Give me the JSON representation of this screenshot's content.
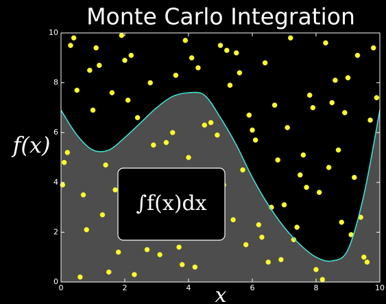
{
  "chart_data": {
    "type": "scatter",
    "title": "Monte Carlo Integration",
    "xlabel": "x",
    "ylabel": "f(x)",
    "annotation": "∫f(x)dx",
    "xlim": [
      0,
      10
    ],
    "ylim": [
      0,
      10
    ],
    "xticks": [
      0,
      2,
      4,
      6,
      8,
      10
    ],
    "yticks": [
      0,
      2,
      4,
      6,
      8,
      10
    ],
    "curve": {
      "color": "#40e0d0",
      "fill": "#4d4d4d",
      "x": [
        0,
        0.5,
        1,
        1.5,
        2,
        2.5,
        3,
        3.5,
        4,
        4.5,
        5,
        5.5,
        6,
        6.5,
        7,
        7.5,
        8,
        8.5,
        9,
        9.5,
        10
      ],
      "values": [
        6.9,
        5.9,
        5.3,
        5.3,
        5.8,
        6.4,
        7.0,
        7.45,
        7.6,
        7.5,
        6.6,
        5.5,
        4.2,
        3.1,
        2.2,
        1.5,
        1.0,
        0.85,
        1.3,
        3.5,
        6.9
      ]
    },
    "points": {
      "color": "#ffff3a",
      "x": [
        0.3,
        1.2,
        2.5,
        3.1,
        4.7,
        5.5,
        6.2,
        7.8,
        8.4,
        9.6,
        0.8,
        1.9,
        2.9,
        3.6,
        4.2,
        5.1,
        6.7,
        7.3,
        8.9,
        9.2,
        0.5,
        1.5,
        2.2,
        3.4,
        4.9,
        5.8,
        6.4,
        7.1,
        8.1,
        9.8,
        0.1,
        1.0,
        2.7,
        3.9,
        4.4,
        5.3,
        6.9,
        7.6,
        8.6,
        9.4,
        0.6,
        1.7,
        2.1,
        3.3,
        4.1,
        5.7,
        6.0,
        7.4,
        8.3,
        9.1,
        0.9,
        1.3,
        2.4,
        3.8,
        4.6,
        5.2,
        6.6,
        7.9,
        8.7,
        9.5,
        0.2,
        1.1,
        2.8,
        3.0,
        4.8,
        5.9,
        6.3,
        7.2,
        8.0,
        9.9,
        0.7,
        1.6,
        2.3,
        3.5,
        4.3,
        5.4,
        6.8,
        7.7,
        8.5,
        9.3,
        0.4,
        1.4,
        2.6,
        3.7,
        4.5,
        5.6,
        6.1,
        7.0,
        8.2,
        9.7,
        1.8,
        2.0,
        3.2,
        4.0,
        5.0,
        6.5,
        7.5,
        8.8,
        9.0,
        0.05
      ],
      "values": [
        9.5,
        8.7,
        3.2,
        1.1,
        6.4,
        9.2,
        2.3,
        7.5,
        4.6,
        0.8,
        2.1,
        9.9,
        5.5,
        8.3,
        0.6,
        3.9,
        7.1,
        1.7,
        6.8,
        4.2,
        7.7,
        0.4,
        9.1,
        2.8,
        5.9,
        1.5,
        8.8,
        6.2,
        3.6,
        9.4,
        4.8,
        6.9,
        1.3,
        9.7,
        3.3,
        7.9,
        0.9,
        5.1,
        8.1,
        2.6,
        0.2,
        3.7,
        7.3,
        5.6,
        9.0,
        4.5,
        6.1,
        2.2,
        9.6,
        1.9,
        8.5,
        2.7,
        6.6,
        0.7,
        4.1,
        9.3,
        3.0,
        7.0,
        5.3,
        1.0,
        5.2,
        9.4,
        8.0,
        4.4,
        2.0,
        6.7,
        1.8,
        9.8,
        0.5,
        7.4,
        3.5,
        7.6,
        0.3,
        6.0,
        8.6,
        2.5,
        4.9,
        3.8,
        7.2,
        9.1,
        9.8,
        4.7,
        2.9,
        1.4,
        6.3,
        8.4,
        5.7,
        3.1,
        0.1,
        6.5,
        1.2,
        8.9,
        3.4,
        5.0,
        9.5,
        0.8,
        4.3,
        2.4,
        8.2,
        3.9
      ]
    }
  }
}
